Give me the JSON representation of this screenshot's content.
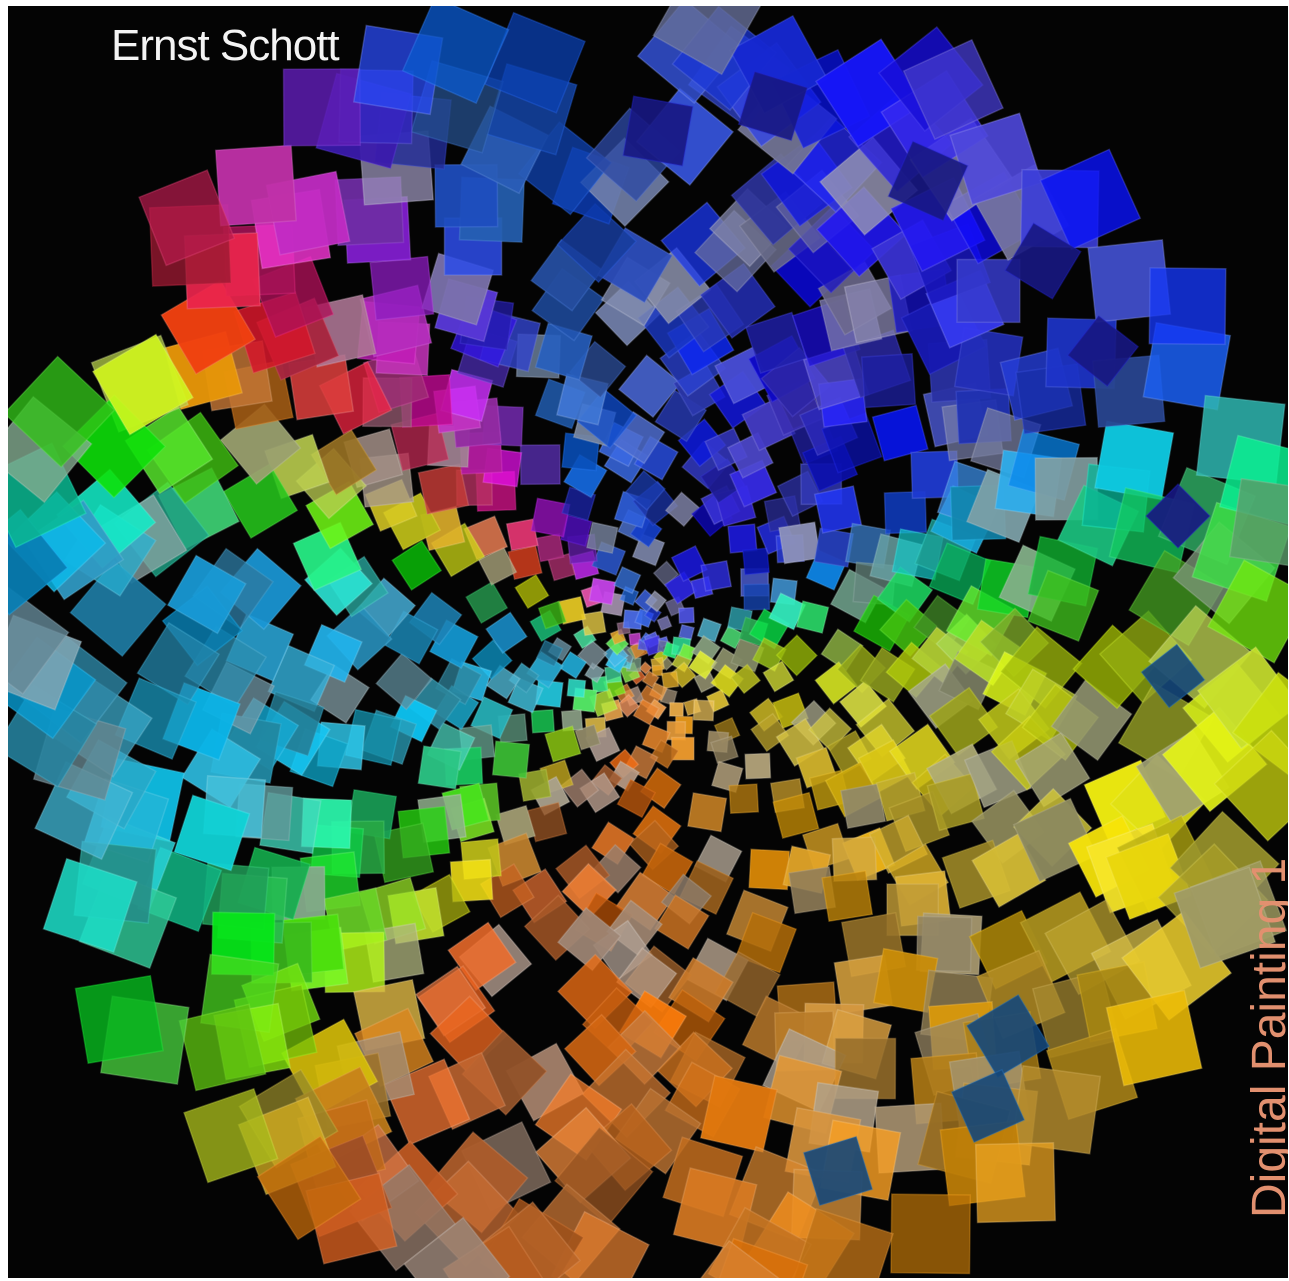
{
  "cover": {
    "author": "Ernst Schott",
    "title": "Digital Painting 1"
  },
  "colors": {
    "background": "#040404",
    "author_text": "#f4f4f4",
    "title_text": "#e2906f"
  },
  "artwork": {
    "description_icon": "spiral-of-colored-squares"
  }
}
